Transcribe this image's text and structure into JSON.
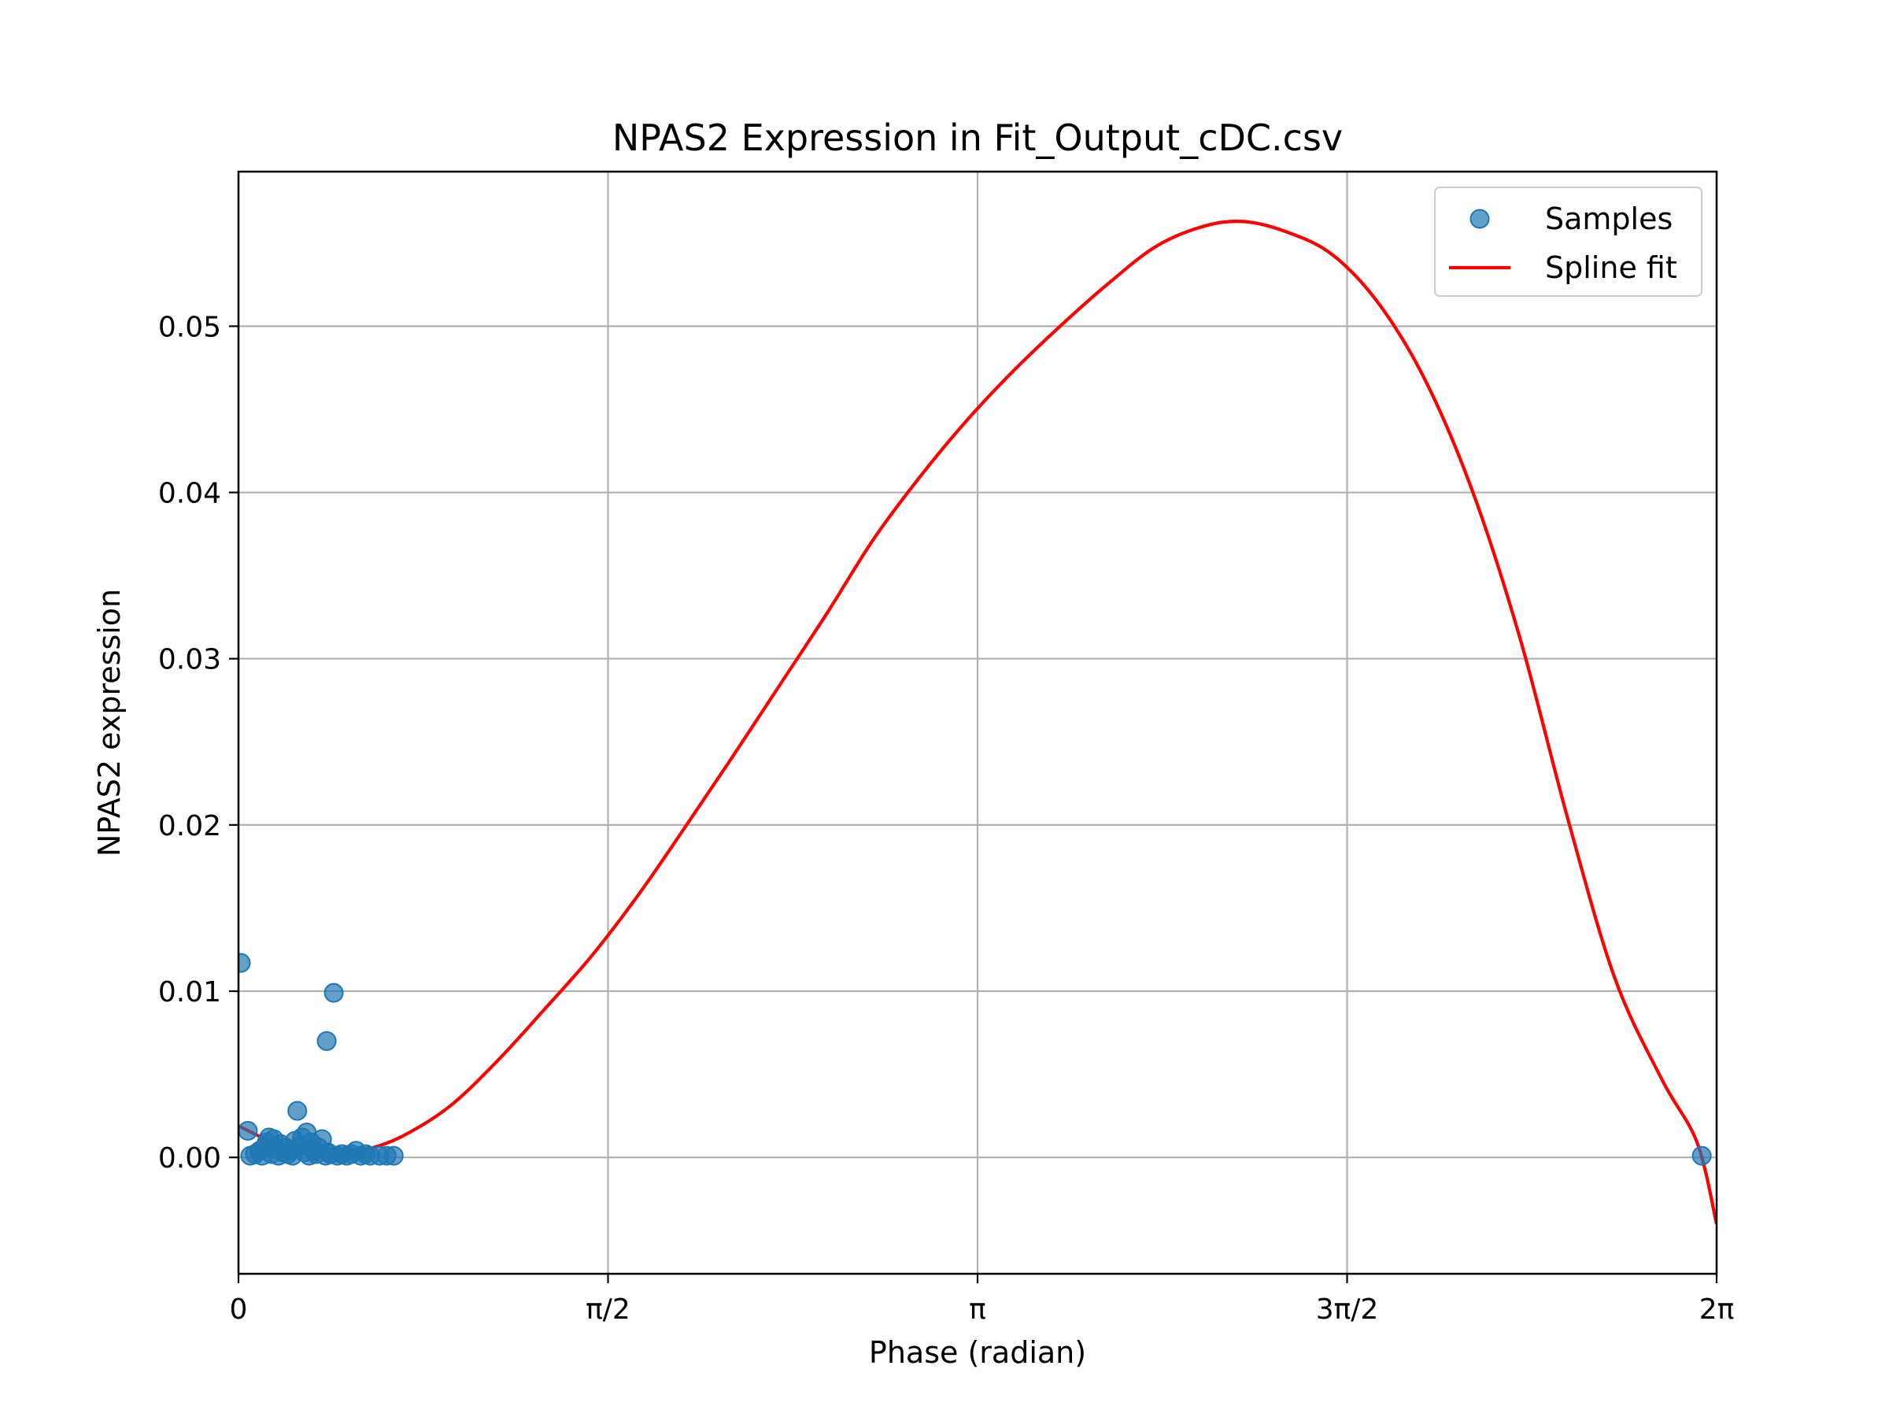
{
  "chart_data": {
    "type": "scatter",
    "title": "NPAS2 Expression in Fit_Output_cDC.csv",
    "xlabel": "Phase (radian)",
    "ylabel": "NPAS2 expression",
    "xlim": [
      0,
      6.283185
    ],
    "ylim": [
      -0.007,
      0.0593
    ],
    "grid": true,
    "legend_position": "top-right",
    "x_ticks": [
      {
        "value": 0,
        "label": "0"
      },
      {
        "value": 1.570796,
        "label": "π/2"
      },
      {
        "value": 3.141593,
        "label": "π"
      },
      {
        "value": 4.712389,
        "label": "3π/2"
      },
      {
        "value": 6.283185,
        "label": "2π"
      }
    ],
    "y_ticks": [
      {
        "value": 0.0,
        "label": "0.00"
      },
      {
        "value": 0.01,
        "label": "0.01"
      },
      {
        "value": 0.02,
        "label": "0.02"
      },
      {
        "value": 0.03,
        "label": "0.03"
      },
      {
        "value": 0.04,
        "label": "0.04"
      },
      {
        "value": 0.05,
        "label": "0.05"
      }
    ],
    "series": [
      {
        "name": "Samples",
        "kind": "scatter",
        "color": "#1f77b4",
        "points": [
          [
            0.01,
            0.0117
          ],
          [
            0.04,
            0.0016
          ],
          [
            0.05,
            0.0001
          ],
          [
            0.07,
            0.0002
          ],
          [
            0.09,
            0.0004
          ],
          [
            0.1,
            0.0001
          ],
          [
            0.11,
            0.0006
          ],
          [
            0.12,
            0.0009
          ],
          [
            0.13,
            0.0012
          ],
          [
            0.14,
            0.0002
          ],
          [
            0.15,
            0.0011
          ],
          [
            0.16,
            0.0005
          ],
          [
            0.17,
            0.0001
          ],
          [
            0.18,
            0.0008
          ],
          [
            0.19,
            0.0003
          ],
          [
            0.2,
            0.0006
          ],
          [
            0.21,
            0.0002
          ],
          [
            0.22,
            0.0004
          ],
          [
            0.23,
            0.0001
          ],
          [
            0.24,
            0.001
          ],
          [
            0.25,
            0.0028
          ],
          [
            0.26,
            0.0007
          ],
          [
            0.27,
            0.0012
          ],
          [
            0.28,
            0.0003
          ],
          [
            0.29,
            0.0015
          ],
          [
            0.3,
            0.0001
          ],
          [
            0.31,
            0.0009
          ],
          [
            0.32,
            0.0004
          ],
          [
            0.33,
            0.0002
          ],
          [
            0.34,
            0.0006
          ],
          [
            0.355,
            0.0011
          ],
          [
            0.37,
            0.0001
          ],
          [
            0.375,
            0.007
          ],
          [
            0.38,
            0.0003
          ],
          [
            0.39,
            0.0002
          ],
          [
            0.405,
            0.0099
          ],
          [
            0.42,
            0.0001
          ],
          [
            0.44,
            0.0002
          ],
          [
            0.46,
            0.0001
          ],
          [
            0.48,
            0.0002
          ],
          [
            0.5,
            0.0004
          ],
          [
            0.52,
            0.0001
          ],
          [
            0.54,
            0.0002
          ],
          [
            0.56,
            0.0001
          ],
          [
            0.6,
            0.0001
          ],
          [
            0.63,
            0.0001
          ],
          [
            0.66,
            0.0001
          ],
          [
            6.22,
            0.0001
          ]
        ]
      },
      {
        "name": "Spline fit",
        "kind": "line",
        "color": "#ff0000",
        "points": [
          [
            0.0,
            0.0019
          ],
          [
            0.1,
            0.0012
          ],
          [
            0.2,
            0.0007
          ],
          [
            0.3,
            0.0004
          ],
          [
            0.42,
            0.0003
          ],
          [
            0.55,
            0.0005
          ],
          [
            0.7,
            0.0013
          ],
          [
            0.9,
            0.0031
          ],
          [
            1.1,
            0.0058
          ],
          [
            1.3,
            0.0089
          ],
          [
            1.5,
            0.0121
          ],
          [
            1.7,
            0.0158
          ],
          [
            1.9,
            0.0199
          ],
          [
            2.1,
            0.0241
          ],
          [
            2.3,
            0.0284
          ],
          [
            2.5,
            0.0327
          ],
          [
            2.7,
            0.0372
          ],
          [
            2.9,
            0.041
          ],
          [
            3.1,
            0.0444
          ],
          [
            3.3,
            0.0474
          ],
          [
            3.5,
            0.0501
          ],
          [
            3.7,
            0.0526
          ],
          [
            3.9,
            0.0548
          ],
          [
            4.1,
            0.056
          ],
          [
            4.27,
            0.0563
          ],
          [
            4.45,
            0.0557
          ],
          [
            4.65,
            0.0543
          ],
          [
            4.85,
            0.0513
          ],
          [
            5.05,
            0.0466
          ],
          [
            5.25,
            0.0399
          ],
          [
            5.45,
            0.0311
          ],
          [
            5.65,
            0.0204
          ],
          [
            5.85,
            0.0108
          ],
          [
            6.05,
            0.0047
          ],
          [
            6.2,
            0.0009
          ],
          [
            6.283,
            -0.004
          ]
        ]
      }
    ]
  }
}
